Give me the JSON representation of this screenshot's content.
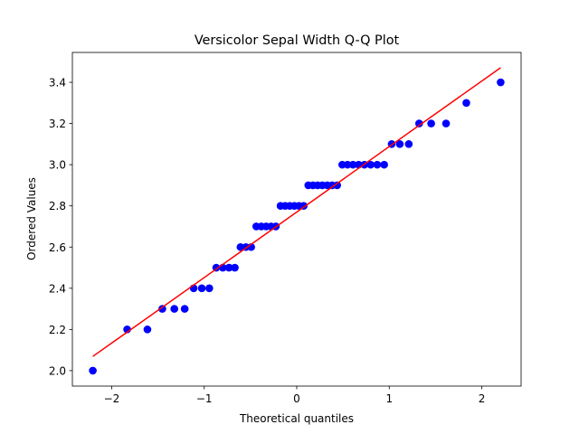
{
  "chart_data": {
    "type": "qq",
    "title": "Versicolor Sepal Width Q-Q Plot",
    "x_label": "Theoretical quantiles",
    "y_label": "Ordered Values",
    "x": [
      -2.204,
      -1.833,
      -1.614,
      -1.453,
      -1.323,
      -1.211,
      -1.114,
      -1.026,
      -0.945,
      -0.87,
      -0.799,
      -0.732,
      -0.669,
      -0.608,
      -0.549,
      -0.492,
      -0.437,
      -0.383,
      -0.33,
      -0.277,
      -0.226,
      -0.175,
      -0.125,
      -0.075,
      -0.025,
      0.025,
      0.075,
      0.125,
      0.175,
      0.226,
      0.277,
      0.33,
      0.383,
      0.437,
      0.492,
      0.549,
      0.608,
      0.669,
      0.732,
      0.799,
      0.87,
      0.945,
      1.026,
      1.114,
      1.211,
      1.323,
      1.453,
      1.614,
      1.833,
      2.204
    ],
    "values": [
      2.0,
      2.2,
      2.2,
      2.3,
      2.3,
      2.3,
      2.4,
      2.4,
      2.4,
      2.5,
      2.5,
      2.5,
      2.5,
      2.6,
      2.6,
      2.6,
      2.7,
      2.7,
      2.7,
      2.7,
      2.7,
      2.8,
      2.8,
      2.8,
      2.8,
      2.8,
      2.8,
      2.9,
      2.9,
      2.9,
      2.9,
      2.9,
      2.9,
      2.9,
      3.0,
      3.0,
      3.0,
      3.0,
      3.0,
      3.0,
      3.0,
      3.0,
      3.1,
      3.1,
      3.1,
      3.2,
      3.2,
      3.2,
      3.3,
      3.4
    ],
    "color": "#0000ff",
    "fit_line": {
      "x": [
        -2.204,
        2.204
      ],
      "values": [
        2.069,
        3.471
      ],
      "color": "#ff0000"
    },
    "xlim": [
      -2.425,
      2.425
    ],
    "ylim": [
      1.925,
      3.545
    ],
    "xticks": [
      {
        "value": -2,
        "label": "−2"
      },
      {
        "value": -1,
        "label": "−1"
      },
      0,
      1,
      2
    ],
    "yticks": [
      {
        "value": 2.0,
        "label": "2.0"
      },
      {
        "value": 2.2,
        "label": "2.2"
      },
      {
        "value": 2.4,
        "label": "2.4"
      },
      {
        "value": 2.6,
        "label": "2.6"
      },
      {
        "value": 2.8,
        "label": "2.8"
      },
      {
        "value": 3.0,
        "label": "3.0"
      },
      {
        "value": 3.2,
        "label": "3.2"
      },
      {
        "value": 3.4,
        "label": "3.4"
      }
    ]
  }
}
